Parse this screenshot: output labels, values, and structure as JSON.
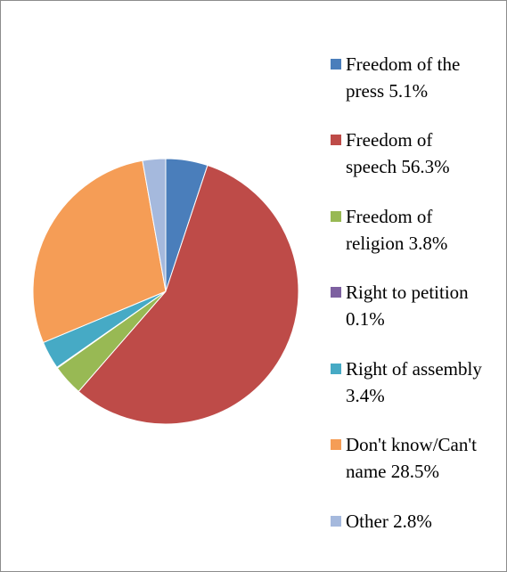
{
  "chart_data": {
    "type": "pie",
    "title": "",
    "start_angle_deg": 0,
    "direction": "clockwise",
    "slices": [
      {
        "label": "Freedom of the press",
        "value": 5.1,
        "value_label": "5.1%",
        "legend_lines": [
          "Freedom of the",
          "press 5.1%"
        ],
        "color": "#4a7ebb"
      },
      {
        "label": "Freedom of speech",
        "value": 56.3,
        "value_label": "56.3%",
        "legend_lines": [
          "Freedom of",
          "speech 56.3%"
        ],
        "color": "#be4b48"
      },
      {
        "label": "Freedom of religion",
        "value": 3.8,
        "value_label": "3.8%",
        "legend_lines": [
          "Freedom of",
          "religion 3.8%"
        ],
        "color": "#98b954"
      },
      {
        "label": "Right to petition",
        "value": 0.1,
        "value_label": "0.1%",
        "legend_lines": [
          "Right to petition",
          "0.1%"
        ],
        "color": "#7d60a0"
      },
      {
        "label": "Right of assembly",
        "value": 3.4,
        "value_label": "3.4%",
        "legend_lines": [
          "Right of assembly",
          "3.4%"
        ],
        "color": "#46aac5"
      },
      {
        "label": "Don't know/Can't name",
        "value": 28.5,
        "value_label": "28.5%",
        "legend_lines": [
          "Don't know/Can't",
          "name 28.5%"
        ],
        "color": "#f59d56"
      },
      {
        "label": "Other",
        "value": 2.8,
        "value_label": "2.8%",
        "legend_lines": [
          "Other 2.8%"
        ],
        "color": "#a5b9dd"
      }
    ],
    "legend_position": "right"
  },
  "colors": {
    "slice_border": "#ffffff",
    "frame_border": "#8c8c8c"
  }
}
